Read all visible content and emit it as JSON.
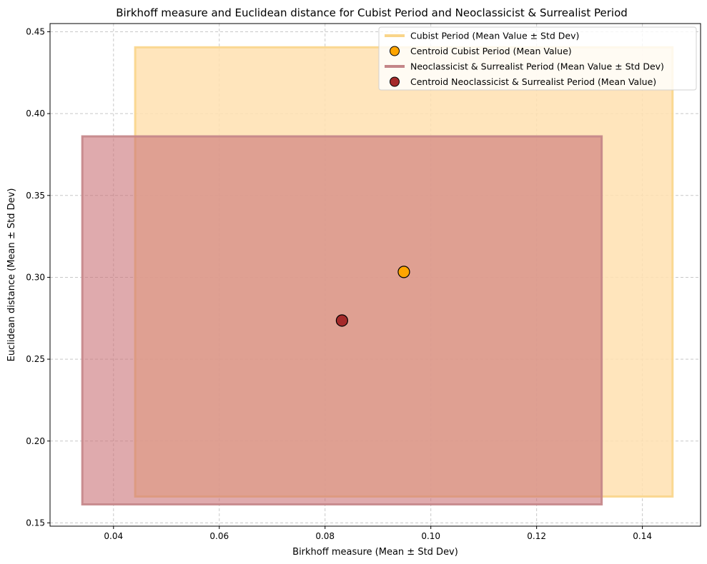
{
  "chart_data": {
    "type": "scatter",
    "title": "Birkhoff measure and Euclidean distance for Cubist Period and Neoclassicist & Surrealist Period",
    "xlabel": "Birkhoff measure (Mean ± Std Dev)",
    "ylabel": "Euclidean distance (Mean ± Std Dev)",
    "xlim": [
      0.028,
      0.151
    ],
    "ylim": [
      0.148,
      0.455
    ],
    "xticks": [
      "0.04",
      "0.06",
      "0.08",
      "0.10",
      "0.12",
      "0.14"
    ],
    "yticks": [
      "0.15",
      "0.20",
      "0.25",
      "0.30",
      "0.35",
      "0.40",
      "0.45"
    ],
    "grid": true,
    "legend_position": "top-right",
    "series": [
      {
        "name": "Cubist Period (Mean Value ± Std Dev)",
        "centroid_name": "Centroid Cubist Period (Mean Value)",
        "x_mean": 0.0949,
        "y_mean": 0.3033,
        "x_range": [
          0.0441,
          0.1457
        ],
        "y_range": [
          0.1661,
          0.4405
        ],
        "color": "#FFA500",
        "rect_fill": "#FFE1B0",
        "rect_edge": "#F9D58A"
      },
      {
        "name": "Neoclassicist & Surrealist Period (Mean Value ± Std Dev)",
        "centroid_name": "Centroid Neoclassicist & Surrealist Period (Mean Value)",
        "x_mean": 0.0832,
        "y_mean": 0.2736,
        "x_range": [
          0.0341,
          0.1323
        ],
        "y_range": [
          0.1613,
          0.3861
        ],
        "color": "#A52A2A",
        "rect_fill": "#C97276",
        "rect_edge": "#C48588"
      }
    ]
  }
}
